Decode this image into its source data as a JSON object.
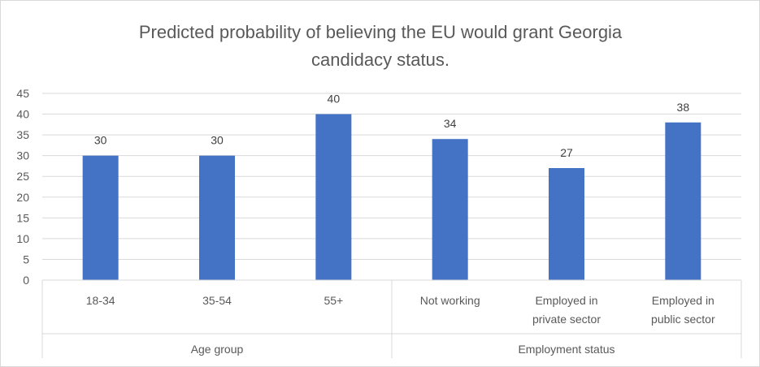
{
  "chart_data": {
    "type": "bar",
    "title_lines": [
      "Predicted probability of believing the EU would grant Georgia",
      "candidacy status."
    ],
    "categories": [
      [
        "18-34"
      ],
      [
        "35-54"
      ],
      [
        "55+"
      ],
      [
        "Not working"
      ],
      [
        "Employed in",
        "private sector"
      ],
      [
        "Employed in",
        "public sector"
      ]
    ],
    "values": [
      30,
      30,
      40,
      34,
      27,
      38
    ],
    "groups": [
      {
        "label": "Age group",
        "count": 3
      },
      {
        "label": "Employment status",
        "count": 3
      }
    ],
    "ylim": [
      0,
      45
    ],
    "yticks": [
      0,
      5,
      10,
      15,
      20,
      25,
      30,
      35,
      40,
      45
    ],
    "grid": true,
    "bar_color": "#4472C4"
  }
}
